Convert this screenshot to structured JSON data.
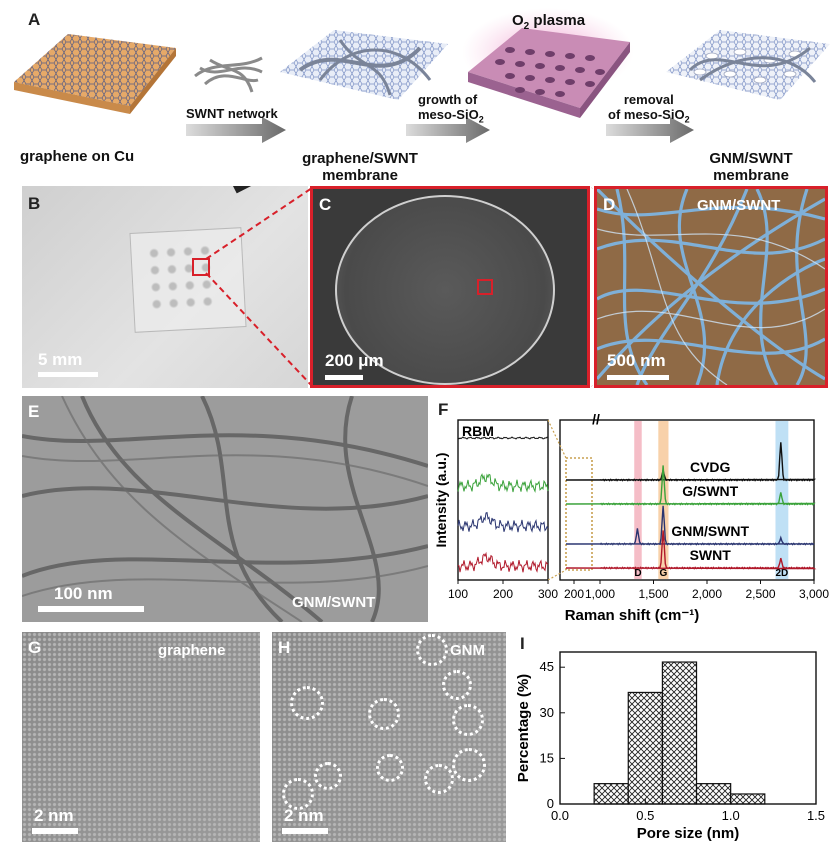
{
  "panel_A": {
    "label": "A",
    "step1": "graphene on Cu",
    "arrow1": "SWNT network",
    "step2_line1": "graphene/SWNT",
    "step2_line2": "membrane",
    "arrow2_line1": "growth of",
    "arrow2_line2": "meso-SiO",
    "arrow2_sub": "2",
    "plasma_o": "O",
    "plasma_sub": "2",
    "plasma_rest": " plasma",
    "arrow3_line1": "removal",
    "arrow3_line2": "of meso-SiO",
    "arrow3_sub": "2",
    "step3_line1": "GNM/SWNT",
    "step3_line2": "membrane"
  },
  "panel_B": {
    "label": "B",
    "scale": "5 mm"
  },
  "panel_C": {
    "label": "C",
    "scale": "200 μm"
  },
  "panel_D": {
    "label": "D",
    "title": "GNM/SWNT",
    "scale": "500 nm"
  },
  "panel_E": {
    "label": "E",
    "title": "GNM/SWNT",
    "scale": "100 nm"
  },
  "panel_F": {
    "label": "F"
  },
  "panel_G": {
    "label": "G",
    "title": "graphene",
    "scale": "2 nm"
  },
  "panel_H": {
    "label": "H",
    "title": "GNM",
    "scale": "2 nm"
  },
  "panel_I": {
    "label": "I"
  },
  "colors": {
    "red_frame": "#d8202a",
    "d_band": "#f2a7b4",
    "g_band": "#f6c28e",
    "twod_band": "#a9d6f2",
    "cvdg": "#111111",
    "g_swnt": "#3aa23a",
    "gnm_swnt": "#2a3570",
    "swnt": "#b0182a"
  },
  "chart_data": [
    {
      "type": "line",
      "panel": "F",
      "inset_title": "RBM",
      "ylabel": "Intensity (a.u.)",
      "xlabel": "Raman shift (cm⁻¹)",
      "inset_xticks": [
        "100",
        "200",
        "300"
      ],
      "main_xticks": [
        "200",
        "1,000",
        "1,500",
        "2,000",
        "2,500",
        "3,000"
      ],
      "main_xlim": [
        1000,
        3000
      ],
      "band_labels": [
        "D",
        "G",
        "2D"
      ],
      "series": [
        {
          "name": "CVDG",
          "peaks": [
            [
              1590,
              0.25
            ],
            [
              2690,
              1.0
            ]
          ]
        },
        {
          "name": "G/SWNT",
          "peaks": [
            [
              1590,
              1.0
            ],
            [
              2690,
              0.3
            ]
          ]
        },
        {
          "name": "GNM/SWNT",
          "peaks": [
            [
              1350,
              0.4
            ],
            [
              1590,
              1.0
            ],
            [
              2690,
              0.15
            ]
          ]
        },
        {
          "name": "SWNT",
          "peaks": [
            [
              1590,
              1.0
            ],
            [
              2690,
              0.25
            ]
          ]
        }
      ]
    },
    {
      "type": "bar",
      "panel": "I",
      "xlabel": "Pore size (nm)",
      "ylabel": "Percentage (%)",
      "xlim": [
        0.0,
        1.5
      ],
      "ylim": [
        0,
        50
      ],
      "xticks": [
        "0.0",
        "0.5",
        "1.0",
        "1.5"
      ],
      "yticks": [
        "0",
        "15",
        "30",
        "45"
      ],
      "bins": [
        [
          0.2,
          0.4
        ],
        [
          0.4,
          0.6
        ],
        [
          0.6,
          0.8
        ],
        [
          0.8,
          1.0
        ],
        [
          1.0,
          1.2
        ]
      ],
      "values": [
        6.7,
        36.7,
        46.7,
        6.7,
        3.3
      ]
    }
  ]
}
